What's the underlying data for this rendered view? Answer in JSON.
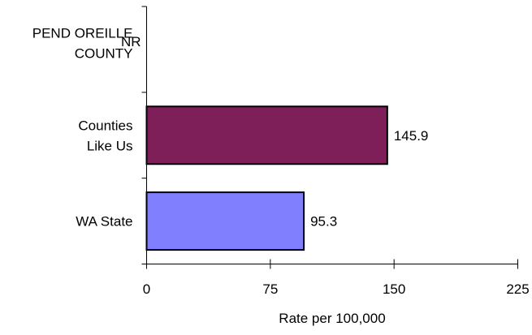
{
  "chart_data": {
    "type": "bar",
    "orientation": "horizontal",
    "categories": [
      [
        "PEND OREILLE",
        "COUNTY"
      ],
      [
        "Counties",
        "Like Us"
      ],
      [
        "WA State"
      ]
    ],
    "values": [
      null,
      145.9,
      95.3
    ],
    "data_labels": [
      "NR",
      "145.9",
      "95.3"
    ],
    "bar_colors": [
      null,
      "#7F1F5A",
      "#8080FF"
    ],
    "xlabel": "Rate per 100,000",
    "xlim": [
      0,
      225
    ],
    "xticks": [
      0,
      75,
      150,
      225
    ],
    "xtick_labels": [
      "0",
      "75",
      "150",
      "225"
    ],
    "grid": false,
    "legend": "none"
  }
}
